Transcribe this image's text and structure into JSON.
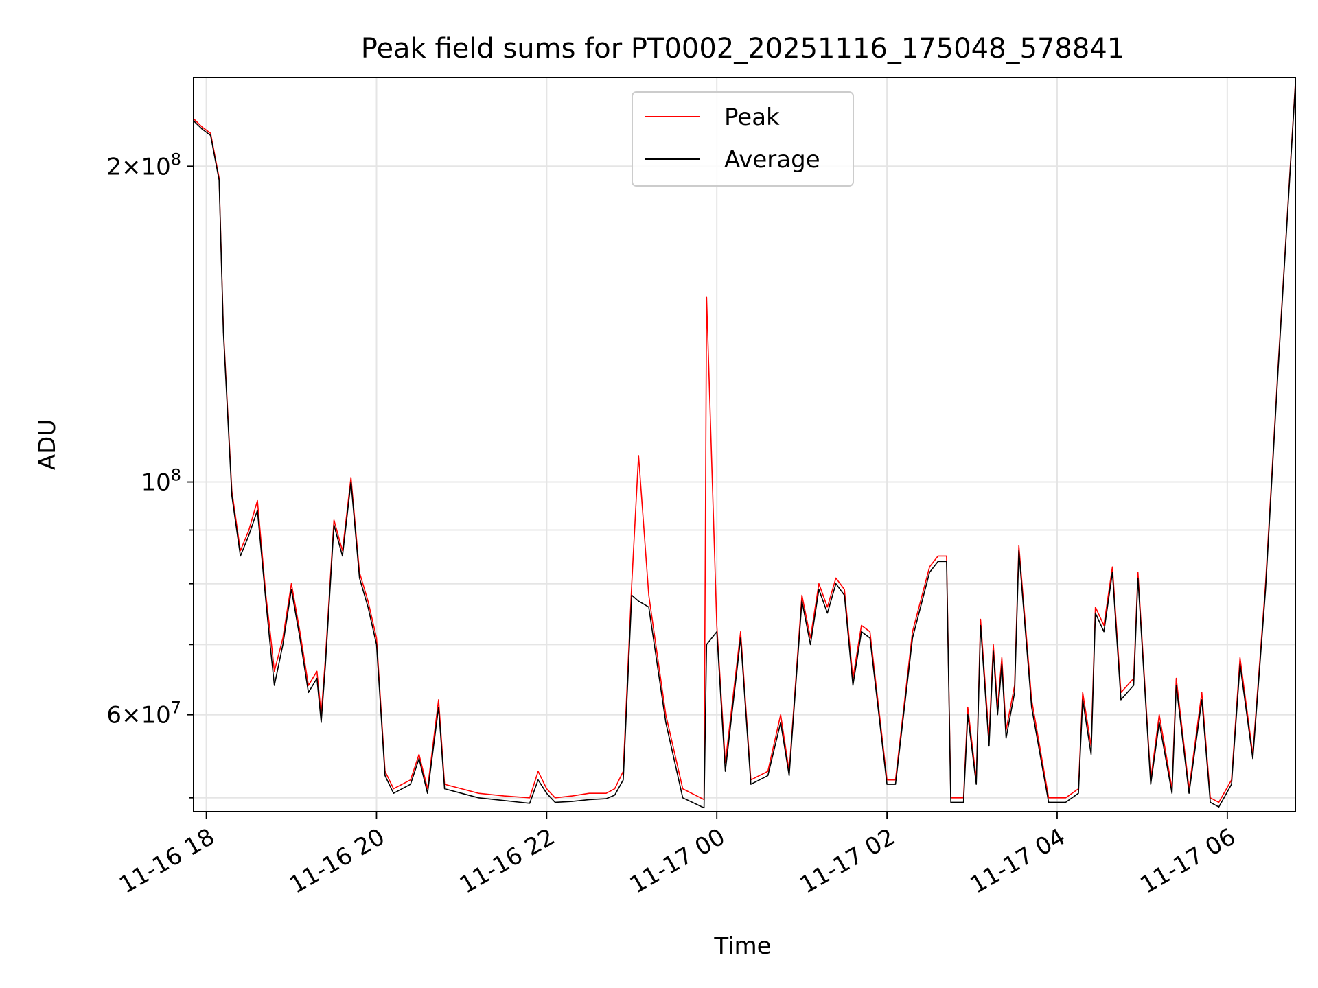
{
  "chart_data": {
    "type": "line",
    "title": "Peak field sums for PT0002_20251116_175048_578841",
    "xlabel": "Time",
    "ylabel": "ADU",
    "yscale": "log",
    "grid": true,
    "legend_position": "upper-center",
    "xlim_hours": [
      -0.15,
      12.8
    ],
    "ylim": [
      48500000,
      243000000
    ],
    "x_unit": "hours since 2025-11-16 18:00",
    "x_ticks": [
      {
        "value": 0,
        "label": "11-16 18"
      },
      {
        "value": 2,
        "label": "11-16 20"
      },
      {
        "value": 4,
        "label": "11-16 22"
      },
      {
        "value": 6,
        "label": "11-17 00"
      },
      {
        "value": 8,
        "label": "11-17 02"
      },
      {
        "value": 10,
        "label": "11-17 04"
      },
      {
        "value": 12,
        "label": "11-17 06"
      }
    ],
    "y_major_ticks": [
      {
        "value": 60000000,
        "mantissa": "6",
        "base": "10",
        "exp": "7"
      },
      {
        "value": 100000000,
        "mantissa": "",
        "base": "10",
        "exp": "8"
      },
      {
        "value": 200000000,
        "mantissa": "2",
        "base": "10",
        "exp": "8"
      }
    ],
    "y_minor_ticks": [
      50000000,
      70000000,
      80000000,
      90000000
    ],
    "series": [
      {
        "name": "Peak",
        "color": "#ff0000",
        "x": [
          -0.15,
          -0.05,
          0.05,
          0.15,
          0.2,
          0.3,
          0.4,
          0.5,
          0.6,
          0.7,
          0.75,
          0.8,
          0.9,
          1.0,
          1.1,
          1.2,
          1.3,
          1.35,
          1.4,
          1.5,
          1.6,
          1.7,
          1.8,
          1.9,
          2.0,
          2.1,
          2.2,
          2.4,
          2.5,
          2.6,
          2.73,
          2.8,
          3.0,
          3.2,
          3.5,
          3.8,
          3.9,
          4.0,
          4.1,
          4.3,
          4.5,
          4.7,
          4.8,
          4.9,
          5.0,
          5.08,
          5.2,
          5.4,
          5.6,
          5.85,
          5.88,
          6.0,
          6.1,
          6.28,
          6.4,
          6.6,
          6.75,
          6.85,
          7.0,
          7.1,
          7.2,
          7.3,
          7.4,
          7.5,
          7.6,
          7.7,
          7.8,
          8.0,
          8.1,
          8.3,
          8.5,
          8.6,
          8.7,
          8.75,
          8.9,
          8.95,
          9.05,
          9.1,
          9.2,
          9.25,
          9.3,
          9.35,
          9.4,
          9.5,
          9.55,
          9.7,
          9.9,
          10.1,
          10.25,
          10.3,
          10.4,
          10.45,
          10.55,
          10.65,
          10.75,
          10.9,
          10.95,
          11.1,
          11.2,
          11.35,
          11.4,
          11.55,
          11.7,
          11.8,
          11.9,
          12.05,
          12.15,
          12.3,
          12.45,
          12.6,
          12.8
        ],
        "y": [
          222000000,
          218000000,
          215000000,
          195000000,
          140000000,
          98000000,
          86000000,
          90000000,
          96000000,
          78000000,
          72000000,
          66000000,
          71000000,
          80000000,
          72000000,
          64000000,
          66000000,
          60000000,
          68000000,
          92000000,
          86000000,
          101000000,
          82000000,
          77000000,
          71000000,
          53000000,
          51000000,
          52000000,
          55000000,
          51000000,
          62000000,
          51500000,
          51000000,
          50500000,
          50200000,
          50000000,
          53000000,
          51000000,
          50000000,
          50200000,
          50500000,
          50500000,
          51000000,
          53000000,
          80000000,
          106000000,
          78000000,
          60000000,
          51000000,
          49800000,
          150000000,
          73000000,
          54000000,
          72000000,
          52000000,
          53000000,
          60000000,
          53000000,
          78000000,
          71000000,
          80000000,
          76000000,
          81000000,
          79000000,
          65000000,
          73000000,
          72000000,
          52000000,
          52000000,
          72000000,
          83000000,
          85000000,
          85000000,
          50000000,
          50000000,
          61000000,
          52000000,
          74000000,
          57000000,
          70000000,
          61000000,
          68000000,
          58000000,
          64000000,
          87000000,
          62000000,
          50000000,
          50000000,
          51000000,
          63000000,
          56000000,
          76000000,
          73000000,
          83000000,
          63000000,
          65000000,
          82000000,
          52000000,
          60000000,
          51000000,
          65000000,
          51000000,
          63000000,
          50000000,
          49500000,
          52000000,
          68000000,
          55000000,
          80000000,
          130000000,
          240000000
        ]
      },
      {
        "name": "Average",
        "color": "#000000",
        "x": [
          -0.15,
          -0.05,
          0.05,
          0.15,
          0.2,
          0.3,
          0.4,
          0.5,
          0.6,
          0.7,
          0.75,
          0.8,
          0.9,
          1.0,
          1.1,
          1.2,
          1.3,
          1.35,
          1.4,
          1.5,
          1.6,
          1.7,
          1.8,
          1.9,
          2.0,
          2.1,
          2.2,
          2.4,
          2.5,
          2.6,
          2.73,
          2.8,
          3.0,
          3.2,
          3.5,
          3.8,
          3.9,
          4.0,
          4.1,
          4.3,
          4.5,
          4.7,
          4.8,
          4.9,
          5.0,
          5.08,
          5.2,
          5.4,
          5.6,
          5.85,
          5.88,
          6.0,
          6.1,
          6.28,
          6.4,
          6.6,
          6.75,
          6.85,
          7.0,
          7.1,
          7.2,
          7.3,
          7.4,
          7.5,
          7.6,
          7.7,
          7.8,
          8.0,
          8.1,
          8.3,
          8.5,
          8.6,
          8.7,
          8.75,
          8.9,
          8.95,
          9.05,
          9.1,
          9.2,
          9.25,
          9.3,
          9.35,
          9.4,
          9.5,
          9.55,
          9.7,
          9.9,
          10.1,
          10.25,
          10.3,
          10.4,
          10.45,
          10.55,
          10.65,
          10.75,
          10.9,
          10.95,
          11.1,
          11.2,
          11.35,
          11.4,
          11.55,
          11.7,
          11.8,
          11.9,
          12.05,
          12.15,
          12.3,
          12.45,
          12.6,
          12.8
        ],
        "y": [
          221000000,
          217000000,
          214000000,
          194000000,
          139000000,
          97000000,
          85000000,
          89000000,
          94000000,
          77000000,
          70000000,
          64000000,
          70000000,
          79000000,
          71000000,
          63000000,
          65000000,
          59000000,
          67000000,
          91000000,
          85000000,
          100000000,
          81000000,
          76000000,
          70000000,
          52500000,
          50500000,
          51500000,
          54500000,
          50500000,
          61000000,
          51000000,
          50500000,
          50000000,
          49700000,
          49400000,
          52000000,
          50500000,
          49500000,
          49600000,
          49800000,
          49900000,
          50300000,
          52000000,
          78000000,
          77000000,
          76000000,
          59000000,
          50000000,
          48900000,
          70000000,
          72000000,
          53000000,
          71000000,
          51500000,
          52500000,
          59000000,
          52500000,
          77000000,
          70000000,
          79000000,
          75000000,
          80000000,
          78000000,
          64000000,
          72000000,
          71000000,
          51500000,
          51500000,
          71000000,
          82000000,
          84000000,
          84000000,
          49500000,
          49500000,
          60000000,
          51500000,
          73000000,
          56000000,
          69000000,
          60000000,
          67000000,
          57000000,
          63000000,
          86000000,
          61000000,
          49500000,
          49500000,
          50500000,
          62000000,
          55000000,
          75000000,
          72000000,
          82000000,
          62000000,
          64000000,
          81000000,
          51500000,
          59000000,
          50500000,
          64000000,
          50500000,
          62000000,
          49500000,
          49000000,
          51500000,
          67000000,
          54500000,
          79000000,
          129000000,
          239000000
        ]
      }
    ]
  }
}
